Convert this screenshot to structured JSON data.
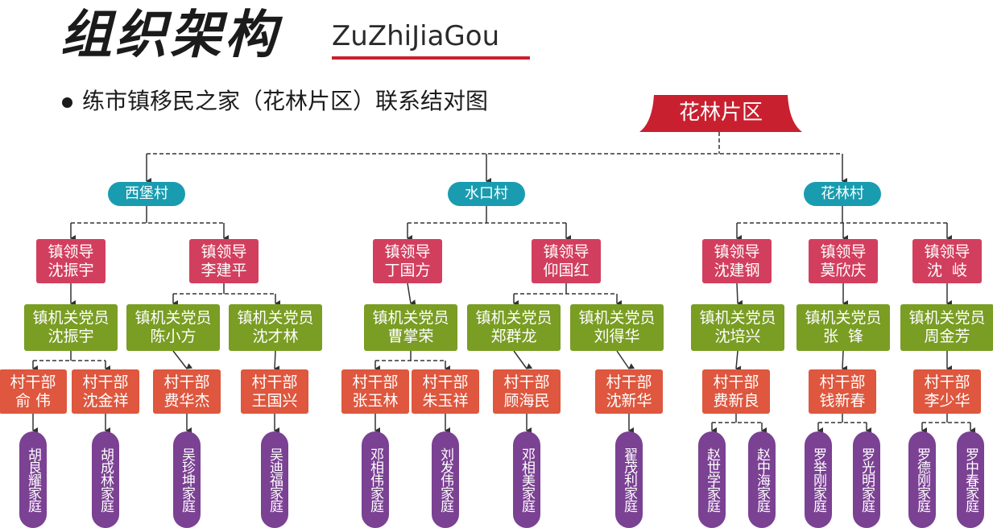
{
  "header": {
    "title_cn": "组织架构",
    "title_en": "ZuZhiJiaGou",
    "subtitle": "练市镇移民之家（花林片区）联系结对图"
  },
  "colors": {
    "root": "#c8202f",
    "village": "#1a9cb0",
    "leader": "#d23f5e",
    "official": "#7a9d23",
    "cadre": "#de573e",
    "family": "#7b4193"
  },
  "org": {
    "root": "花林片区",
    "villages": [
      {
        "name": "西堡村",
        "leaders": [
          {
            "l1": "镇领导",
            "l2": "沈振宇",
            "officials": [
              {
                "l1": "镇机关党员",
                "l2": "沈振宇",
                "cadres": [
                  {
                    "l1": "村干部",
                    "l2": "俞 伟",
                    "families": [
                      "胡良耀家庭"
                    ]
                  },
                  {
                    "l1": "村干部",
                    "l2": "沈金祥",
                    "families": [
                      "胡成林家庭"
                    ]
                  }
                ]
              }
            ]
          },
          {
            "l1": "镇领导",
            "l2": "李建平",
            "officials": [
              {
                "l1": "镇机关党员",
                "l2": "陈小方",
                "cadres": [
                  {
                    "l1": "村干部",
                    "l2": "费华杰",
                    "families": [
                      "吴珍坤家庭"
                    ]
                  }
                ]
              },
              {
                "l1": "镇机关党员",
                "l2": "沈才林",
                "cadres": [
                  {
                    "l1": "村干部",
                    "l2": "王国兴",
                    "families": [
                      "吴迪福家庭"
                    ]
                  }
                ]
              }
            ]
          }
        ]
      },
      {
        "name": "水口村",
        "leaders": [
          {
            "l1": "镇领导",
            "l2": "丁国方",
            "officials": [
              {
                "l1": "镇机关党员",
                "l2": "曹掌荣",
                "cadres": [
                  {
                    "l1": "村干部",
                    "l2": "张玉林",
                    "families": [
                      "邓相伟家庭"
                    ]
                  },
                  {
                    "l1": "村干部",
                    "l2": "朱玉祥",
                    "families": [
                      "刘发伟家庭"
                    ]
                  }
                ]
              }
            ]
          },
          {
            "l1": "镇领导",
            "l2": "仰国红",
            "officials": [
              {
                "l1": "镇机关党员",
                "l2": "郑群龙",
                "cadres": [
                  {
                    "l1": "村干部",
                    "l2": "顾海民",
                    "families": [
                      "邓相美家庭"
                    ]
                  }
                ]
              },
              {
                "l1": "镇机关党员",
                "l2": "刘得华",
                "cadres": [
                  {
                    "l1": "村干部",
                    "l2": "沈新华",
                    "families": [
                      "翟茂利家庭"
                    ]
                  }
                ]
              }
            ]
          }
        ]
      },
      {
        "name": "花林村",
        "leaders": [
          {
            "l1": "镇领导",
            "l2": "沈建钢",
            "officials": [
              {
                "l1": "镇机关党员",
                "l2": "沈培兴",
                "cadres": [
                  {
                    "l1": "村干部",
                    "l2": "费新良",
                    "families": [
                      "赵世学家庭",
                      "赵中海家庭"
                    ]
                  }
                ]
              }
            ]
          },
          {
            "l1": "镇领导",
            "l2": "莫欣庆",
            "officials": [
              {
                "l1": "镇机关党员",
                "l2": "张  锋",
                "cadres": [
                  {
                    "l1": "村干部",
                    "l2": "钱新春",
                    "families": [
                      "罗举刚家庭",
                      "罗光明家庭"
                    ]
                  }
                ]
              }
            ]
          },
          {
            "l1": "镇领导",
            "l2": "沈  岐",
            "officials": [
              {
                "l1": "镇机关党员",
                "l2": "周金芳",
                "cadres": [
                  {
                    "l1": "村干部",
                    "l2": "李少华",
                    "families": [
                      "罗德刚家庭",
                      "罗中春家庭"
                    ]
                  }
                ]
              }
            ]
          }
        ]
      }
    ]
  }
}
